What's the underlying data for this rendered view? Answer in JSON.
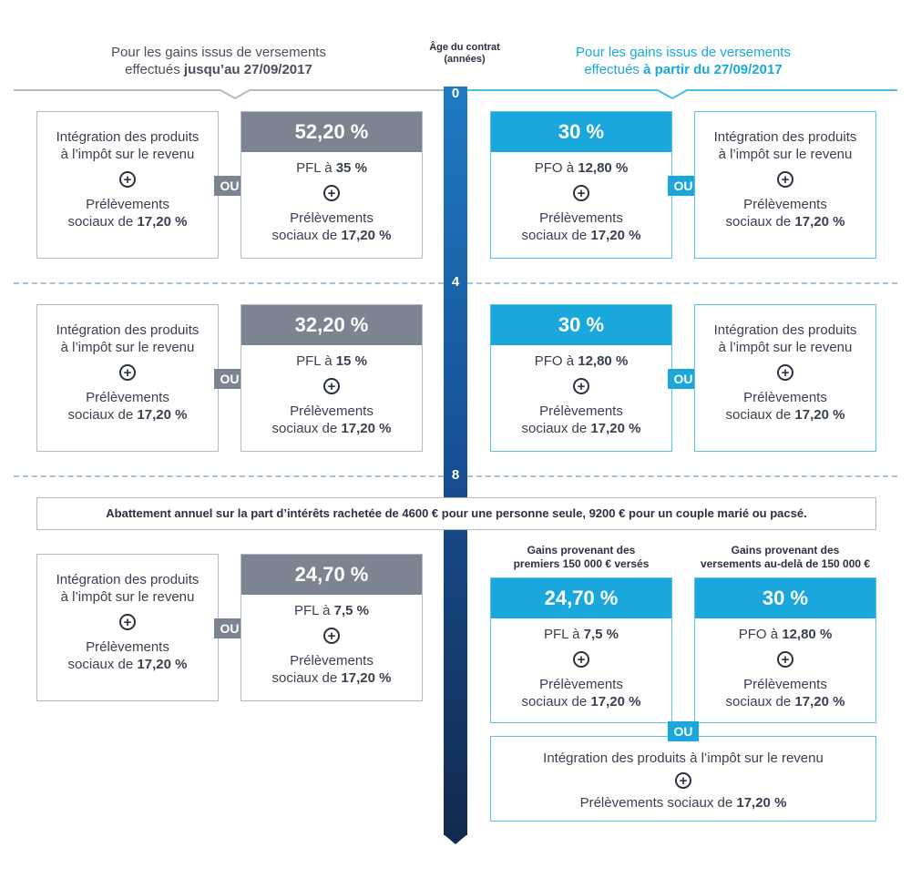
{
  "header": {
    "left_line1": "Pour les gains issus de versements",
    "left_line2_pre": "effectués ",
    "left_line2_bold": "jusqu’au 27/09/2017",
    "right_line1": "Pour les gains issus de versements",
    "right_line2_pre": "effectués ",
    "right_line2_bold": "à partir du 27/09/2017",
    "axis_title_line1": "Âge du contrat",
    "axis_title_line2": "(années)"
  },
  "axis": {
    "ticks": [
      "0",
      "4",
      "8"
    ]
  },
  "colors": {
    "grey": "#7b8490",
    "cyan": "#1aa8dc",
    "navy": "#122a4f",
    "axis_top": "#1f7bc2"
  },
  "icons": {
    "plus": "circled-plus-icon"
  },
  "ou_label": "OU",
  "text": {
    "integration_line1": "Intégration des produits",
    "integration_line2": "à l’impôt sur le revenu",
    "prel_line1": "Prélèvements",
    "prel_line2_pre": "sociaux de ",
    "prel_line2_bold": "17,20 %",
    "pfl_prefix": "PFL à ",
    "pfo_prefix": "PFO à "
  },
  "period1": {
    "left_rate": "52,20 %",
    "left_pfl": "35 %",
    "right_rate": "30 %",
    "right_pfo": "12,80 %"
  },
  "period2": {
    "left_rate": "32,20 %",
    "left_pfl": "15 %",
    "right_rate": "30 %",
    "right_pfo": "12,80 %"
  },
  "abattement": "Abattement annuel sur la part d’intérêts rachetée de 4600 € pour une personne seule, 9200 € pour un couple marié ou pacsé.",
  "period3": {
    "left_rate": "24,70 %",
    "left_pfl": "7,5 %",
    "cap1_line1": "Gains provenant des",
    "cap1_line2": "premiers 150 000 € versés",
    "cap2_line1": "Gains provenant des",
    "cap2_line2": "versements au-delà de 150 000 €",
    "mid_rate": "24,70 %",
    "mid_pfl": "7,5 %",
    "far_rate": "30 %",
    "far_pfo": "12,80 %",
    "bottom_line1": "Intégration des produits à l’impôt sur le revenu",
    "bottom_line2_pre": "Prélèvements sociaux de ",
    "bottom_line2_bold": "17,20 %"
  }
}
